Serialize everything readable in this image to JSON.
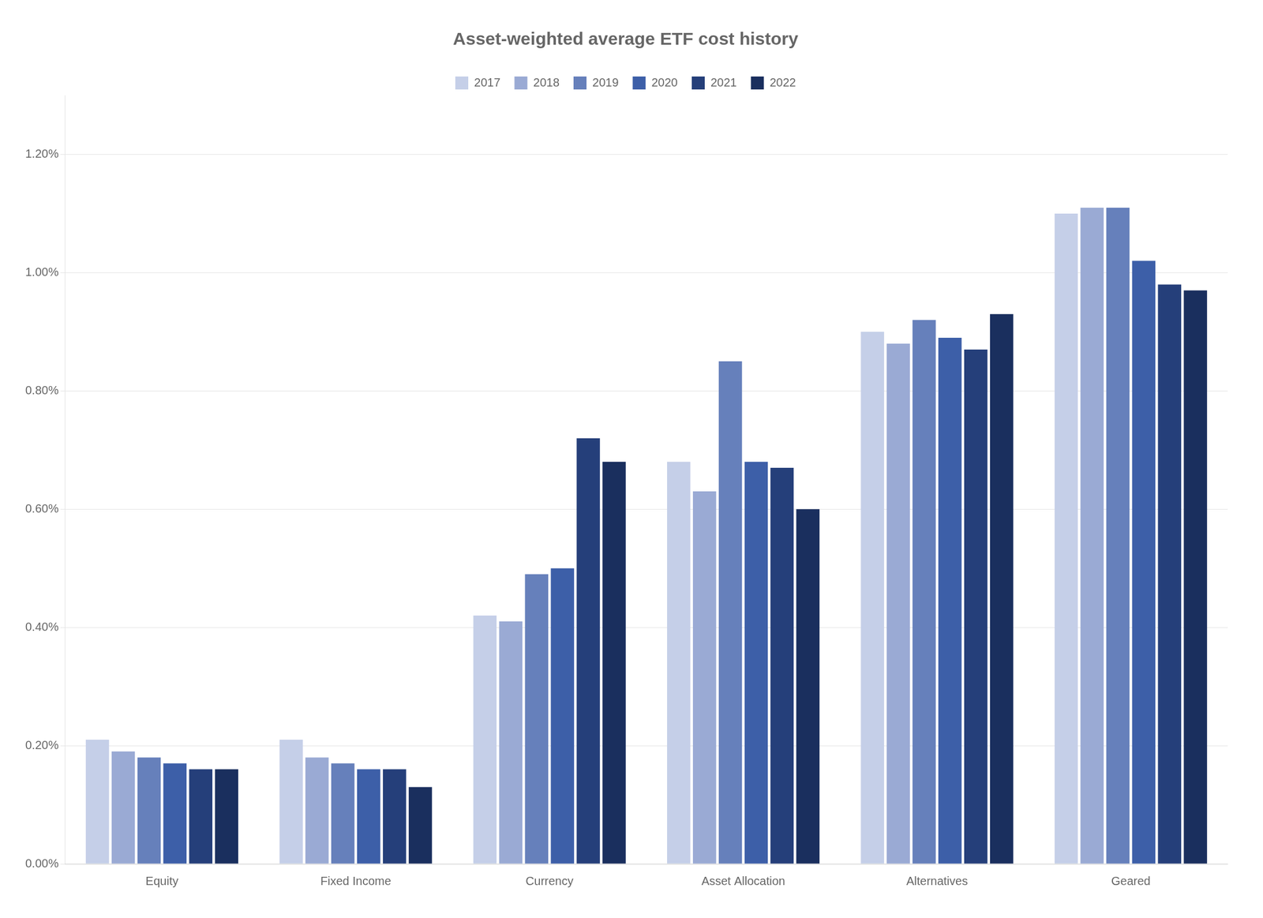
{
  "chart_data": {
    "type": "bar",
    "title": "Asset-weighted average ETF cost history",
    "categories": [
      "Equity",
      "Fixed Income",
      "Currency",
      "Asset Allocation",
      "Alternatives",
      "Geared"
    ],
    "series": [
      {
        "name": "2017",
        "color": "#c5cfe8",
        "values": [
          0.0021,
          0.0021,
          0.0042,
          0.0068,
          0.009,
          0.011
        ]
      },
      {
        "name": "2018",
        "color": "#9aaad4",
        "values": [
          0.0019,
          0.0018,
          0.0041,
          0.0063,
          0.0088,
          0.0111
        ]
      },
      {
        "name": "2019",
        "color": "#6680bb",
        "values": [
          0.0018,
          0.0017,
          0.0049,
          0.0085,
          0.0092,
          0.0111
        ]
      },
      {
        "name": "2020",
        "color": "#3d5fa8",
        "values": [
          0.0017,
          0.0016,
          0.005,
          0.0068,
          0.0089,
          0.0102
        ]
      },
      {
        "name": "2021",
        "color": "#253f7a",
        "values": [
          0.0016,
          0.0016,
          0.0072,
          0.0067,
          0.0087,
          0.0098
        ]
      },
      {
        "name": "2022",
        "color": "#1a2f5e",
        "values": [
          0.0016,
          0.0013,
          0.0068,
          0.006,
          0.0093,
          0.0097
        ]
      }
    ],
    "ylim": [
      0.0,
      0.013
    ],
    "yticks": [
      {
        "value": 0.0,
        "label": "0.00%"
      },
      {
        "value": 0.002,
        "label": "0.20%"
      },
      {
        "value": 0.004,
        "label": "0.40%"
      },
      {
        "value": 0.006,
        "label": "0.60%"
      },
      {
        "value": 0.008,
        "label": "0.80%"
      },
      {
        "value": 0.01,
        "label": "1.00%"
      },
      {
        "value": 0.012,
        "label": "1.20%"
      }
    ],
    "grid": true,
    "legend": "top"
  }
}
